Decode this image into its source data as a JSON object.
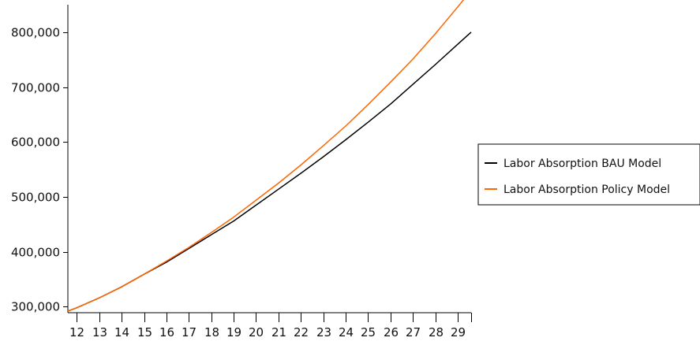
{
  "chart_data": {
    "type": "line",
    "title": "",
    "xlabel": "",
    "ylabel": "",
    "x": [
      12,
      13,
      14,
      15,
      16,
      17,
      18,
      19,
      20,
      21,
      22,
      23,
      24,
      25,
      26,
      27,
      28,
      29
    ],
    "x_tick_labels": [
      "12",
      "13",
      "14",
      "15",
      "16",
      "17",
      "18",
      "19",
      "20",
      "21",
      "22",
      "23",
      "24",
      "25",
      "26",
      "27",
      "28",
      "29"
    ],
    "y_tick_labels": [
      "300,000",
      "400,000",
      "500,000",
      "600,000",
      "700,000",
      "800,000"
    ],
    "y_ticks": [
      300000,
      400000,
      500000,
      600000,
      700000,
      800000
    ],
    "xlim": [
      11.6,
      29.6
    ],
    "ylim": [
      289000,
      850000
    ],
    "grid": false,
    "legend_position": "right",
    "series": [
      {
        "name": "Labor Absorption BAU Model",
        "color": "#000000",
        "x": [
          11.6,
          12,
          13,
          14,
          15,
          16,
          17,
          18,
          19,
          20,
          21,
          22,
          23,
          24,
          25,
          26,
          27,
          28,
          29,
          29.6
        ],
        "values": [
          292000,
          298000,
          316000,
          336000,
          359000,
          381000,
          406000,
          431000,
          456000,
          485000,
          514000,
          543000,
          573000,
          604000,
          636000,
          669000,
          705000,
          741000,
          778000,
          800000
        ]
      },
      {
        "name": "Labor Absorption Policy Model",
        "color": "#ff6600",
        "x": [
          11.6,
          12,
          13,
          14,
          15,
          16,
          17,
          18,
          19,
          20,
          21,
          22,
          23,
          24,
          25,
          26,
          27,
          28,
          29,
          29.6
        ],
        "values": [
          292000,
          298000,
          316000,
          336000,
          359000,
          383000,
          408000,
          435000,
          463000,
          494000,
          525000,
          558000,
          593000,
          629000,
          668000,
          709000,
          751000,
          797000,
          846000,
          876000
        ]
      }
    ]
  }
}
